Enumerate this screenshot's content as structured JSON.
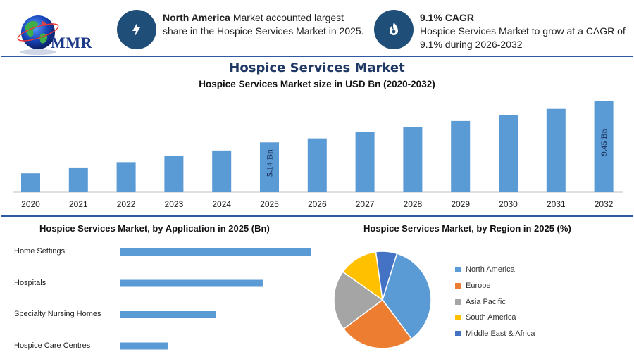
{
  "header": {
    "logo_text": "MMR",
    "info1": {
      "bold": "North America",
      "text": " Market accounted largest share in the Hospice Services Market in 2025.",
      "icon": "lightning-icon"
    },
    "info2": {
      "bold": "9.1% CAGR",
      "text": "Hospice Services Market to grow at a CAGR of 9.1% during 2026-2032",
      "icon": "growth-flame-icon"
    }
  },
  "colors": {
    "bar": "#5b9bd5",
    "navy": "#1f4e79",
    "title": "#1f3864"
  },
  "chart_data": [
    {
      "type": "bar",
      "title": "Hospice Services Market",
      "subtitle": "Hospice Services Market size in USD Bn (2020-2032)",
      "categories": [
        "2020",
        "2021",
        "2022",
        "2023",
        "2024",
        "2025",
        "2026",
        "2027",
        "2028",
        "2029",
        "2030",
        "2031",
        "2032"
      ],
      "values": [
        1.95,
        2.55,
        3.1,
        3.75,
        4.3,
        5.14,
        5.55,
        6.2,
        6.75,
        7.35,
        7.95,
        8.6,
        9.45
      ],
      "data_labels": [
        {
          "category": "2025",
          "text": "5.14 Bn"
        },
        {
          "category": "2032",
          "text": "9.45 Bn"
        }
      ],
      "ylim": [
        0,
        9.45
      ],
      "grid": false
    },
    {
      "type": "bar",
      "orientation": "horizontal",
      "title": "Hospice Services Market, by Application in 2025 (Bn)",
      "categories": [
        "Home Settings",
        "Hospitals",
        "Specialty Nursing Homes",
        "Hospice Care Centres"
      ],
      "values": [
        2.5,
        1.87,
        1.25,
        0.62
      ],
      "xlim": [
        0,
        2.5
      ],
      "grid": false
    },
    {
      "type": "pie",
      "title": "Hospice Services Market, by Region in 2025 (%)",
      "categories": [
        "North America",
        "Europe",
        "Asia Pacific",
        "South America",
        "Middle East & Africa"
      ],
      "values": [
        35,
        25,
        20,
        13,
        7
      ],
      "colors": [
        "#5b9bd5",
        "#ed7d31",
        "#a5a5a5",
        "#ffc000",
        "#4472c4"
      ],
      "legend": "right"
    }
  ]
}
